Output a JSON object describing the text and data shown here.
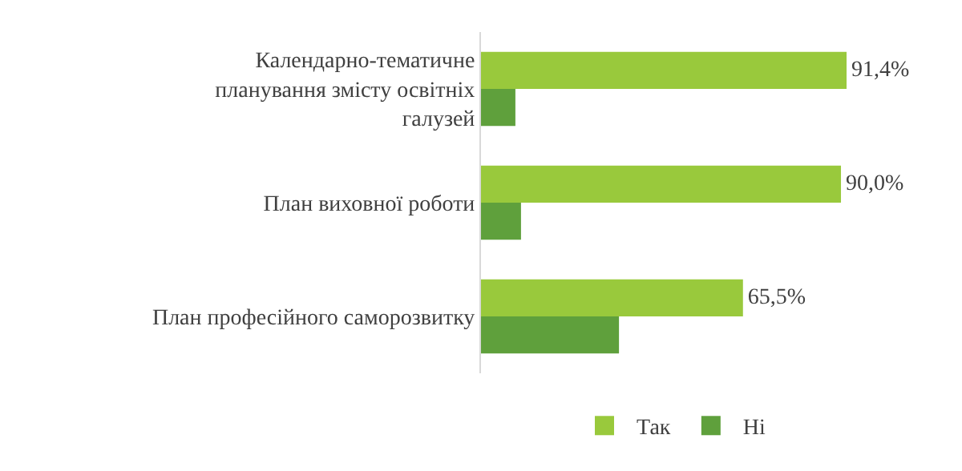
{
  "chart_data": {
    "type": "bar",
    "orientation": "horizontal",
    "categories": [
      "Календарно-тематичне планування змісту освітніх галузей",
      "План виховної роботи",
      "План професійного саморозвитку"
    ],
    "series": [
      {
        "name": "Так",
        "color": "#99c93c",
        "values": [
          91.4,
          90.0,
          65.5
        ],
        "value_labels": [
          "91,4%",
          "90,0%",
          "65,5%"
        ]
      },
      {
        "name": "Ні",
        "color": "#5fa03c",
        "values": [
          8.6,
          10.0,
          34.5
        ],
        "value_labels": [
          null,
          null,
          null
        ]
      }
    ],
    "legend": "bottom",
    "grid": false
  }
}
